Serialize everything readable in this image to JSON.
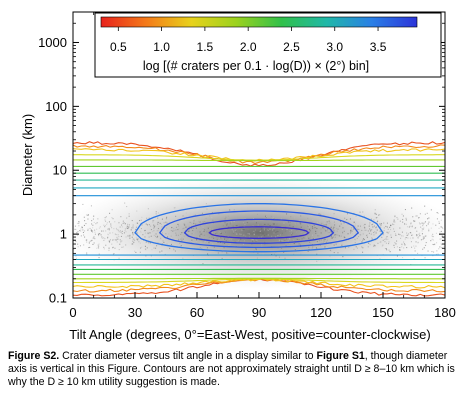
{
  "chart_data": {
    "type": "heatmap",
    "title": "",
    "xlabel": "Tilt Angle (degrees, 0°=East-West, positive=counter-clockwise)",
    "ylabel": "Diameter (km)",
    "xlim": [
      0,
      180
    ],
    "ylim": [
      0.1,
      3000
    ],
    "y_scale": "log",
    "x_ticks": [
      0,
      30,
      60,
      90,
      120,
      150,
      180
    ],
    "y_ticks": [
      {
        "value": 0.1,
        "label": "0.1"
      },
      {
        "value": 1,
        "label": "1"
      },
      {
        "value": 10,
        "label": "10"
      },
      {
        "value": 100,
        "label": "100"
      },
      {
        "value": 1000,
        "label": "1000"
      }
    ],
    "grid": false,
    "colorbar": {
      "label": "log [(# craters per 0.1 · log(D)) × (2°) bin]",
      "range": [
        0.3,
        3.95
      ],
      "ticks": [
        "0.5",
        "1.0",
        "1.5",
        "2.0",
        "2.5",
        "3.0",
        "3.5"
      ],
      "colors": [
        "#e8221c",
        "#f47a19",
        "#e8d21c",
        "#9bd21e",
        "#31c04a",
        "#20b8a8",
        "#2a7fe6",
        "#2c34d9"
      ],
      "placement": "top"
    },
    "density_peak": {
      "tilt": 90,
      "diameter": 1.05
    },
    "contours": [
      {
        "level": 0.5,
        "color": "#e85220",
        "upper_d": 27,
        "lower_d": 0.11
      },
      {
        "level": 0.75,
        "color": "#f28a1c",
        "upper_d": 24,
        "lower_d": 0.13
      },
      {
        "level": 1.0,
        "color": "#f2c21c",
        "upper_d": 21,
        "lower_d": 0.15
      },
      {
        "level": 1.25,
        "color": "#d8d820",
        "upper_d": 17.5,
        "lower_d": 0.175
      },
      {
        "level": 1.5,
        "color": "#a6d51e",
        "upper_d": 14.5,
        "lower_d": 0.2
      },
      {
        "level": 1.75,
        "color": "#62c832",
        "upper_d": 11.5,
        "lower_d": 0.235
      },
      {
        "level": 2.0,
        "color": "#2fbd52",
        "upper_d": 9.0,
        "lower_d": 0.28
      },
      {
        "level": 2.25,
        "color": "#27b894",
        "upper_d": 7.0,
        "lower_d": 0.33
      },
      {
        "level": 2.5,
        "color": "#21a8c2",
        "upper_d": 5.3,
        "lower_d": 0.4
      },
      {
        "level": 2.75,
        "color": "#1f8fd8",
        "upper_d": 4.0,
        "lower_d": 0.47
      },
      {
        "level": 3.0,
        "color": "#2a74e6",
        "upper_d": 3.0,
        "lower_d": 0.53
      },
      {
        "level": 3.25,
        "color": "#2a5ae4",
        "upper_d": 2.3,
        "lower_d": 0.62
      },
      {
        "level": 3.5,
        "color": "#2e42dc",
        "upper_d": 1.7,
        "lower_d": 0.72
      },
      {
        "level": 3.75,
        "color": "#3a2fd0",
        "upper_d": 1.3,
        "lower_d": 0.86
      }
    ]
  },
  "caption": {
    "label": "Figure S2.",
    "text1": " Crater diameter versus tilt angle in a display similar to ",
    "ref": "Figure S1",
    "text2": ", though diameter axis is vertical in this Figure. Contours are not approximately straight until D ≥ 8–10 km which is why the D ≥ 10 km utility suggestion is made."
  }
}
